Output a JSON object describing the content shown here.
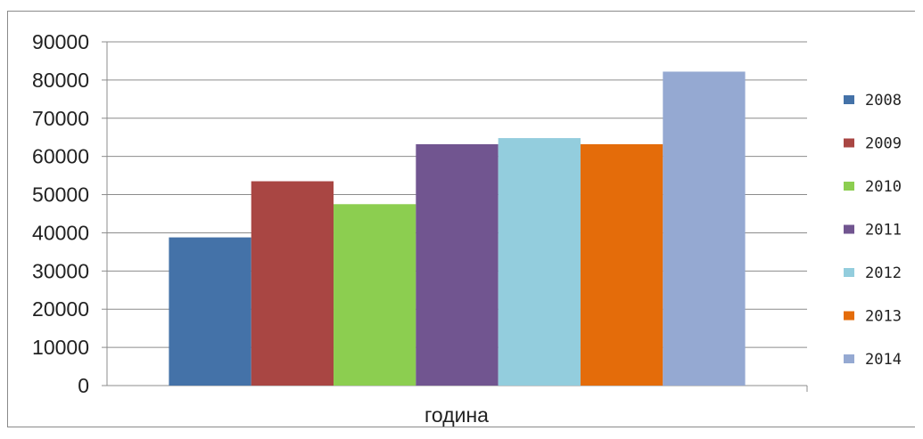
{
  "chart_data": {
    "type": "bar",
    "categories": [
      "година"
    ],
    "xlabel": "година",
    "ylim": [
      0,
      90000
    ],
    "y_ticks": [
      0,
      10000,
      20000,
      30000,
      40000,
      50000,
      60000,
      70000,
      80000,
      90000
    ],
    "y_tick_labels": [
      "0",
      "10000",
      "20000",
      "30000",
      "40000",
      "50000",
      "60000",
      "70000",
      "80000",
      "90000"
    ],
    "grid": true,
    "legend_position": "right",
    "series": [
      {
        "name": "2008",
        "values": [
          38800
        ],
        "color": "#4472a8"
      },
      {
        "name": "2009",
        "values": [
          53500
        ],
        "color": "#a94643"
      },
      {
        "name": "2010",
        "values": [
          47500
        ],
        "color": "#8cce50"
      },
      {
        "name": "2011",
        "values": [
          63200
        ],
        "color": "#715590"
      },
      {
        "name": "2012",
        "values": [
          64800
        ],
        "color": "#93cddd"
      },
      {
        "name": "2013",
        "values": [
          63200
        ],
        "color": "#e46c0a"
      },
      {
        "name": "2014",
        "values": [
          82200
        ],
        "color": "#95a9d2"
      }
    ]
  }
}
